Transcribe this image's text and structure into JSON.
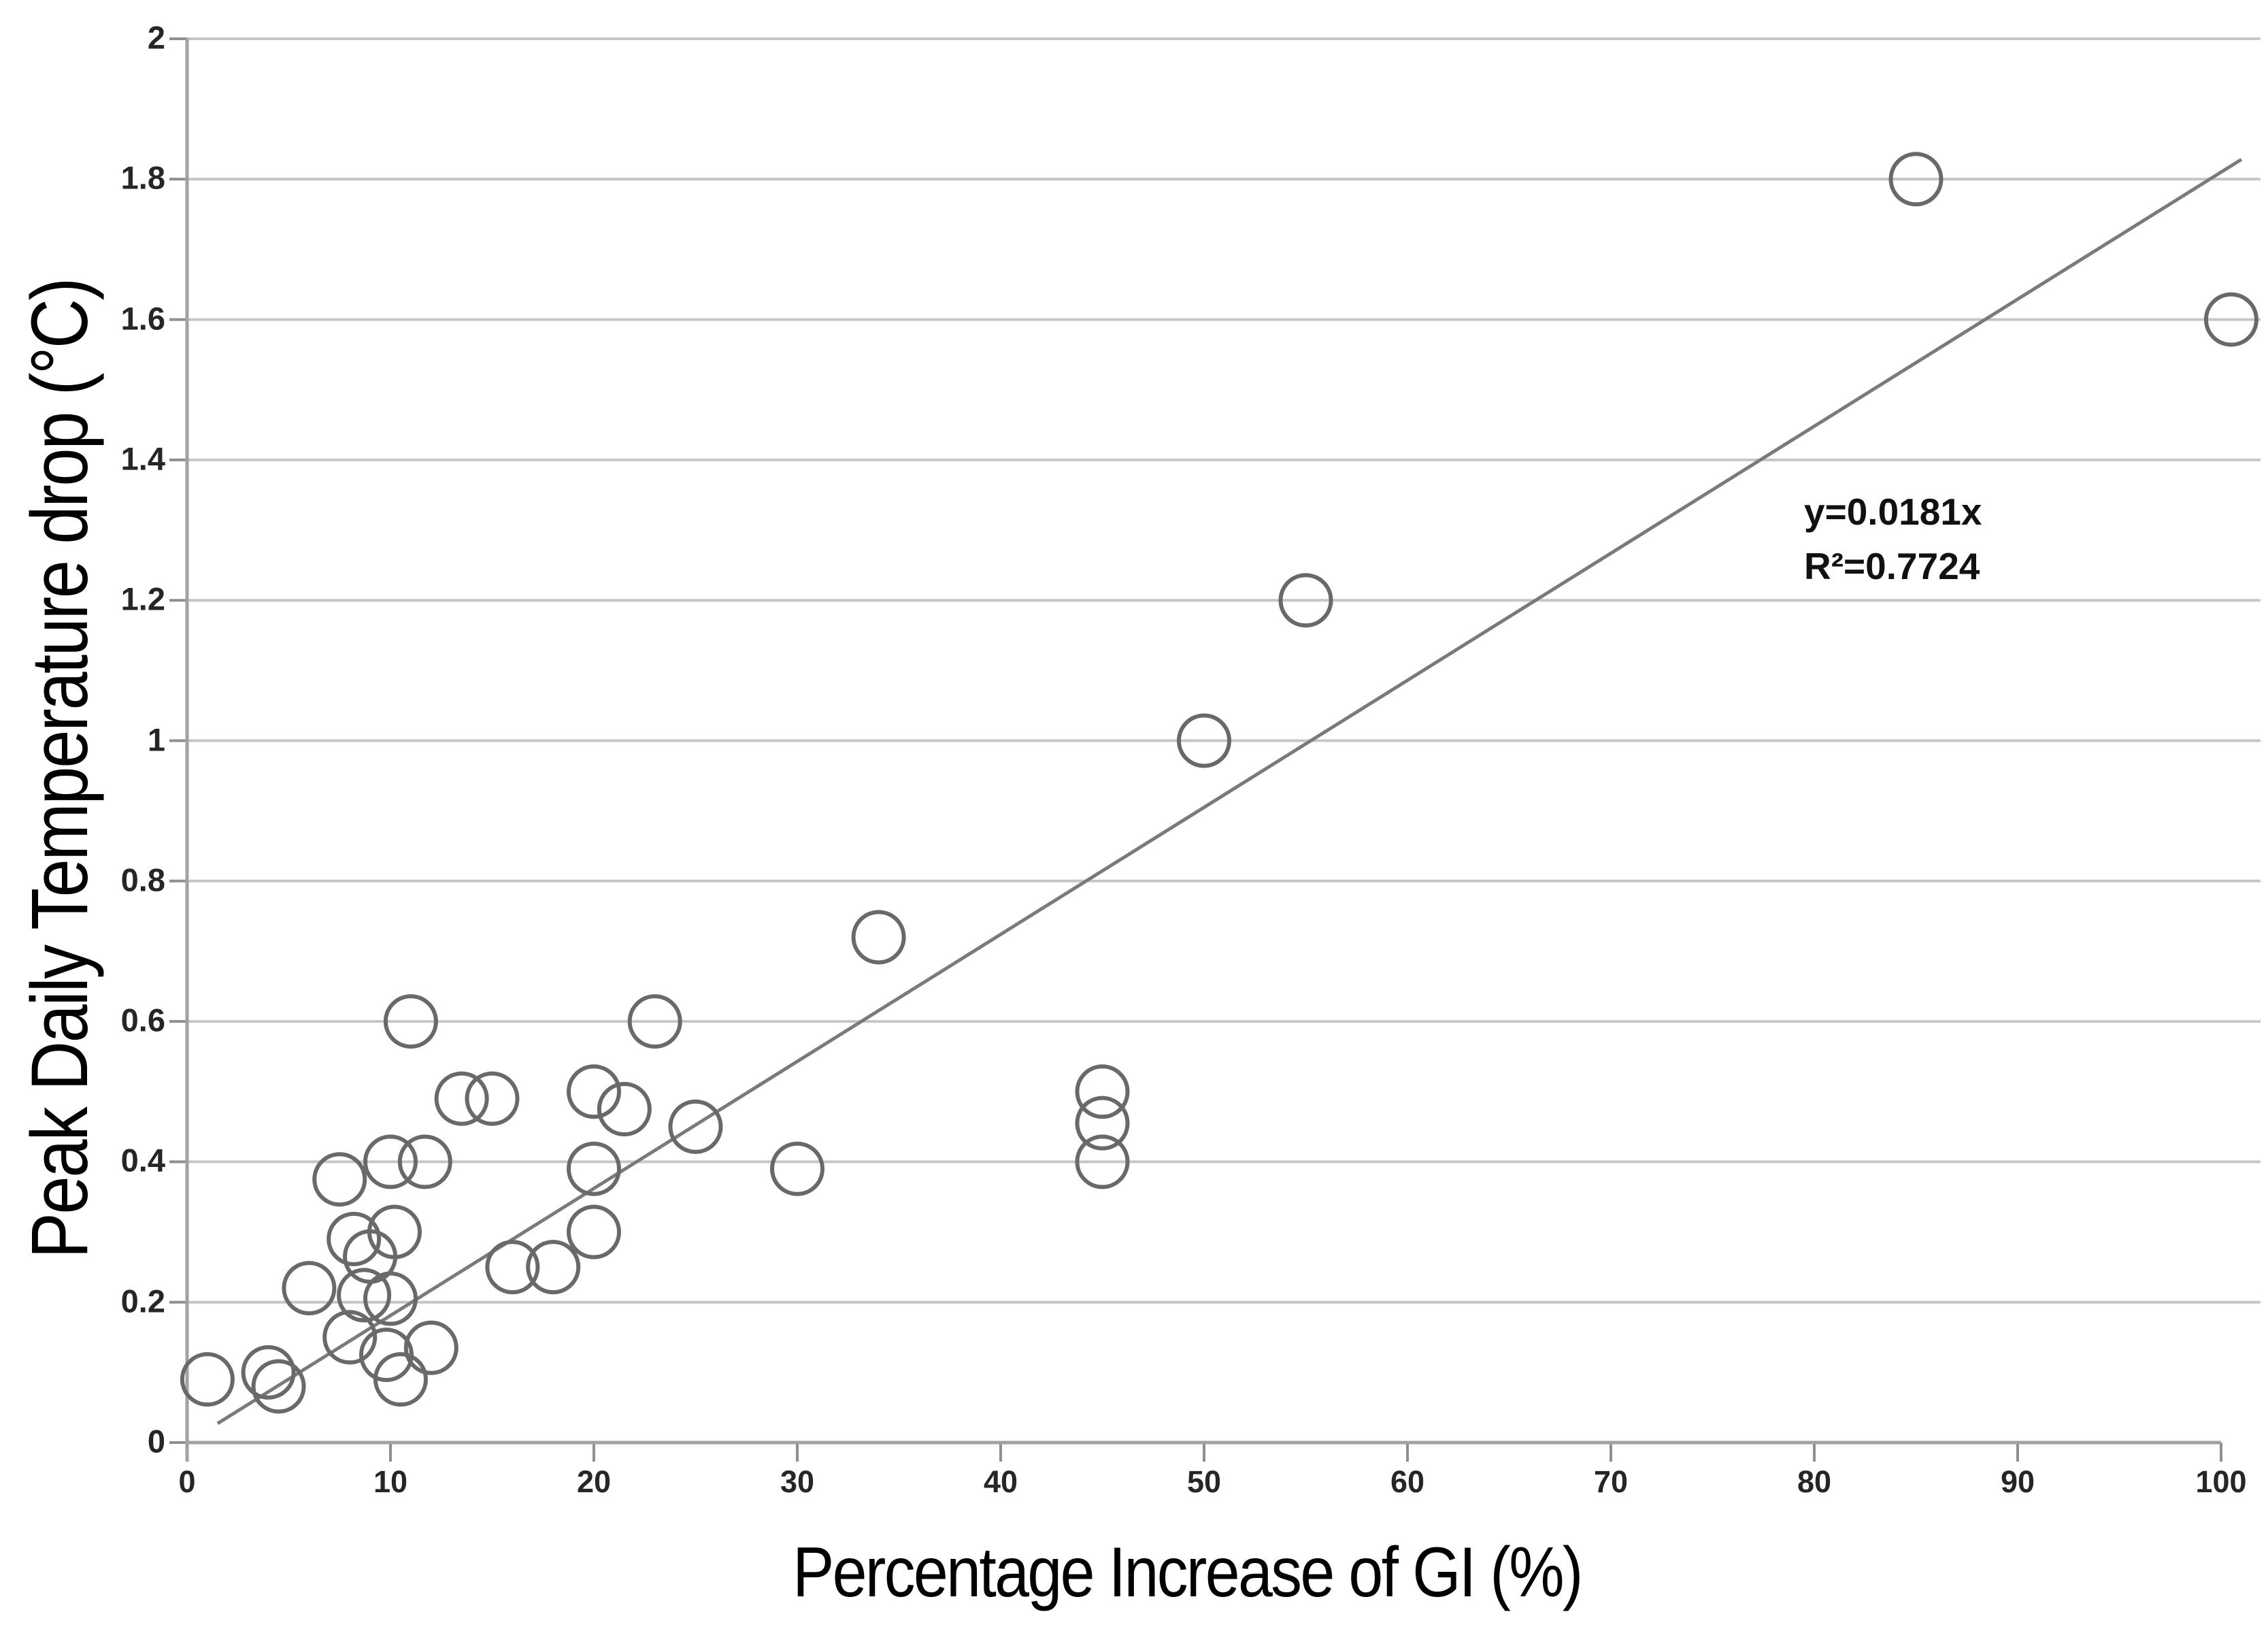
{
  "chart_data": {
    "type": "scatter",
    "title": "",
    "xlabel": "Percentage Increase of GI (%)",
    "ylabel": "Peak Daily Temperature drop (°C)",
    "xlim": [
      0,
      103
    ],
    "ylim": [
      0,
      2
    ],
    "x_ticks": [
      0,
      10,
      20,
      30,
      40,
      50,
      60,
      70,
      80,
      90,
      100
    ],
    "y_ticks": [
      "0",
      "0.2",
      "0.4",
      "0.6",
      "0.8",
      "1",
      "1.2",
      "1.4",
      "1.6",
      "1.8",
      "2"
    ],
    "grid": "horizontal-only",
    "legend": "none",
    "marker": "open-circle",
    "points": [
      [
        1,
        0.09
      ],
      [
        4,
        0.1
      ],
      [
        4.5,
        0.08
      ],
      [
        6,
        0.22
      ],
      [
        8,
        0.15
      ],
      [
        9.8,
        0.125
      ],
      [
        12,
        0.135
      ],
      [
        10.5,
        0.09
      ],
      [
        8.7,
        0.21
      ],
      [
        10,
        0.205
      ],
      [
        8.2,
        0.29
      ],
      [
        9,
        0.265
      ],
      [
        10.2,
        0.3
      ],
      [
        7.5,
        0.375
      ],
      [
        10,
        0.4
      ],
      [
        11.7,
        0.4
      ],
      [
        11,
        0.6
      ],
      [
        13.5,
        0.49
      ],
      [
        15,
        0.49
      ],
      [
        16,
        0.25
      ],
      [
        18,
        0.25
      ],
      [
        20,
        0.3
      ],
      [
        20,
        0.39
      ],
      [
        20,
        0.5
      ],
      [
        21.5,
        0.475
      ],
      [
        23,
        0.6
      ],
      [
        25,
        0.45
      ],
      [
        30,
        0.39
      ],
      [
        34,
        0.72
      ],
      [
        45,
        0.5
      ],
      [
        45,
        0.455
      ],
      [
        45,
        0.4
      ],
      [
        50,
        1.0
      ],
      [
        55,
        1.2
      ],
      [
        85,
        1.8
      ],
      [
        100.5,
        1.6
      ]
    ],
    "trendline": {
      "equation": "y=0.0181x",
      "slope": 0.0181,
      "intercept": 0,
      "r_squared": 0.7724,
      "x_range": [
        1.5,
        101
      ]
    },
    "annotation": {
      "line1": "y=0.0181x",
      "line2": "R²=0.7724"
    }
  },
  "style": {
    "marker_stroke": "#696969",
    "trend_color": "#7a7a7a",
    "grid_color": "#c6c6c6",
    "axis_color": "#a2a2a2",
    "tick_color": "#8f8f8f",
    "label_color": "#262626"
  }
}
